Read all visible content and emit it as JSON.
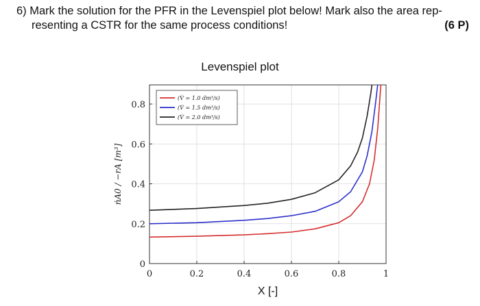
{
  "question": {
    "line1": "6) Mark the solution for the PFR in the Levenspiel plot below! Mark also the area rep-",
    "line2": "resenting a CSTR for the same process conditions!",
    "points": "(6 P)"
  },
  "chart_data": {
    "type": "line",
    "title": "Levenspiel plot",
    "xlabel": "X [-]",
    "ylabel": "ṅA0 / −rA [m³]",
    "xlim": [
      0,
      1
    ],
    "ylim": [
      0,
      0.8
    ],
    "xticks": [
      "0",
      "0.2",
      "0.4",
      "0.6",
      "0.8",
      "1"
    ],
    "yticks": [
      "0",
      "0.2",
      "0.4",
      "0.6",
      "0.8"
    ],
    "grid": true,
    "legend_position": "top-left",
    "series": [
      {
        "name": "(V̇ = 1.0 dm³/s)",
        "color": "#d62d2d",
        "x": [
          0,
          0.2,
          0.4,
          0.5,
          0.6,
          0.7,
          0.8,
          0.85,
          0.9,
          0.93,
          0.95,
          0.965,
          0.98
        ],
        "y": [
          0.133,
          0.137,
          0.144,
          0.15,
          0.158,
          0.174,
          0.205,
          0.24,
          0.31,
          0.4,
          0.52,
          0.68,
          0.93
        ]
      },
      {
        "name": "(V̇ = 1.5 dm³/s)",
        "color": "#2b2fc9",
        "x": [
          0,
          0.2,
          0.4,
          0.5,
          0.6,
          0.7,
          0.8,
          0.85,
          0.9,
          0.92,
          0.94,
          0.955,
          0.97
        ],
        "y": [
          0.2,
          0.205,
          0.217,
          0.226,
          0.24,
          0.262,
          0.31,
          0.36,
          0.46,
          0.54,
          0.66,
          0.8,
          0.95
        ]
      },
      {
        "name": "(V̇ = 2.0 dm³/s)",
        "color": "#222222",
        "x": [
          0,
          0.2,
          0.4,
          0.5,
          0.6,
          0.7,
          0.8,
          0.85,
          0.88,
          0.9,
          0.92,
          0.935,
          0.95
        ],
        "y": [
          0.267,
          0.276,
          0.291,
          0.303,
          0.322,
          0.355,
          0.42,
          0.49,
          0.56,
          0.63,
          0.74,
          0.85,
          0.98
        ]
      }
    ]
  }
}
